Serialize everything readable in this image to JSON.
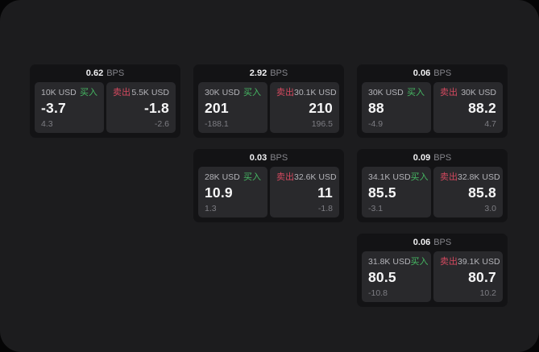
{
  "labels": {
    "bps_unit": "BPS",
    "buy": "买入",
    "sell": "卖出"
  },
  "colors": {
    "buy": "#46b863",
    "sell": "#d4495f",
    "surface": "#1c1c1e",
    "card": "#131315",
    "panel": "#29292c"
  },
  "cards": [
    {
      "bps": "0.62",
      "buy": {
        "notional": "10K USD",
        "value": "-3.7",
        "sub": "4.3"
      },
      "sell": {
        "notional": "5.5K USD",
        "value": "-1.8",
        "sub": "-2.6"
      }
    },
    {
      "bps": "2.92",
      "buy": {
        "notional": "30K USD",
        "value": "201",
        "sub": "-188.1"
      },
      "sell": {
        "notional": "30.1K USD",
        "value": "210",
        "sub": "196.5"
      }
    },
    {
      "bps": "0.06",
      "buy": {
        "notional": "30K USD",
        "value": "88",
        "sub": "-4.9"
      },
      "sell": {
        "notional": "30K USD",
        "value": "88.2",
        "sub": "4.7"
      }
    },
    {
      "bps": "0.03",
      "buy": {
        "notional": "28K USD",
        "value": "10.9",
        "sub": "1.3"
      },
      "sell": {
        "notional": "32.6K USD",
        "value": "11",
        "sub": "-1.8"
      }
    },
    {
      "bps": "0.09",
      "buy": {
        "notional": "34.1K USD",
        "value": "85.5",
        "sub": "-3.1"
      },
      "sell": {
        "notional": "32.8K USD",
        "value": "85.8",
        "sub": "3.0"
      }
    },
    {
      "bps": "0.06",
      "buy": {
        "notional": "31.8K USD",
        "value": "80.5",
        "sub": "-10.8"
      },
      "sell": {
        "notional": "39.1K USD",
        "value": "80.7",
        "sub": "10.2"
      }
    }
  ]
}
